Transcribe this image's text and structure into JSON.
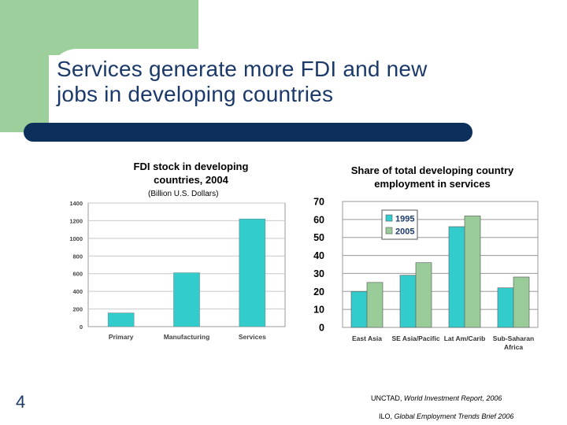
{
  "slide": {
    "title_line1": "Services generate more FDI and new",
    "title_line2": "jobs in developing countries",
    "number": "4"
  },
  "colors": {
    "accent_green": "#9ccf9b",
    "title_blue": "#1b3a6a",
    "bar_navy": "#0d2f5b",
    "teal": "#33cccc",
    "light_green": "#99cc99"
  },
  "chart_data": [
    {
      "type": "bar",
      "title": "FDI stock in developing countries, 2004",
      "unit": "(Billion U.S. Dollars)",
      "categories": [
        "Primary",
        "Manufacturing",
        "Services"
      ],
      "values": [
        155,
        610,
        1220
      ],
      "ylim": [
        0,
        1400
      ],
      "yticks": [
        0,
        200,
        400,
        600,
        800,
        1000,
        1200,
        1400
      ],
      "grid": true,
      "color": "#33cccc"
    },
    {
      "type": "bar",
      "title": "Share of total developing country employment in services",
      "categories": [
        "East Asia",
        "SE Asia/Pacific",
        "Lat Am/Carib",
        "Sub-Saharan Africa"
      ],
      "series": [
        {
          "name": "1995",
          "values": [
            20,
            29,
            56,
            22
          ],
          "color": "#33cccc"
        },
        {
          "name": "2005",
          "values": [
            25,
            36,
            62,
            28
          ],
          "color": "#99cc99"
        }
      ],
      "ylim": [
        0,
        70
      ],
      "yticks": [
        0,
        10,
        20,
        30,
        40,
        50,
        60,
        70
      ],
      "grid": true,
      "legend": "top-left"
    }
  ],
  "sources": {
    "line1_prefix": "UNCTAD, ",
    "line1_italic": "World Investment Report, 2006",
    "line2_prefix": "ILO, ",
    "line2_italic": "Global Employment Trends Brief 2006"
  }
}
